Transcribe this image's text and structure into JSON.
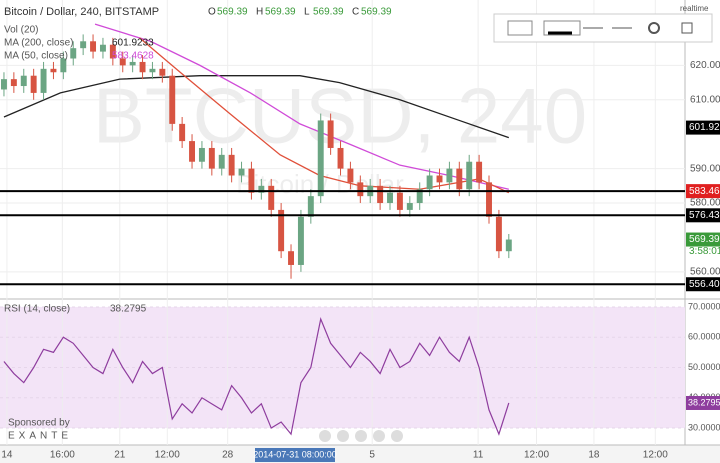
{
  "ui": {
    "ohlc": [
      {
        "label": "O",
        "value": "569.39"
      },
      {
        "label": "H",
        "value": "569.39"
      },
      {
        "label": "L",
        "value": "569.39"
      },
      {
        "label": "C",
        "value": "569.39"
      }
    ],
    "volume_label": "Vol (20)",
    "watermark": "BTCUSD, 240",
    "watermark_sub": "Bitcoin / Dollar",
    "countdown": "3:58:01",
    "crosshair_time": "2014-07-31 08:00:00",
    "sponsor": "Sponsored by",
    "sponsor_name": "EXANTE",
    "mode": "realtime"
  },
  "chart_data": {
    "type": "candlestick",
    "title": "Bitcoin / Dollar, 240, BITSTAMP",
    "up_color": "#6ba583",
    "down_color": "#d75442",
    "open": [
      613,
      616,
      614,
      617,
      612,
      619,
      618,
      622,
      625,
      627,
      624,
      626,
      622,
      620,
      621,
      618,
      619,
      617,
      603,
      598,
      592,
      596,
      590,
      594,
      588,
      590,
      583,
      585,
      578,
      566,
      562,
      576,
      582,
      604,
      596,
      590,
      586,
      582,
      585,
      580,
      583,
      578,
      580,
      584,
      588,
      586,
      590,
      584,
      592,
      586,
      576,
      566
    ],
    "high": [
      618,
      618,
      619,
      619,
      621,
      621,
      624,
      627,
      629,
      629,
      628,
      628,
      624,
      623,
      623,
      621,
      621,
      619,
      605,
      600,
      598,
      598,
      596,
      596,
      592,
      592,
      587,
      587,
      580,
      568,
      578,
      584,
      606,
      606,
      598,
      592,
      588,
      587,
      587,
      585,
      585,
      582,
      586,
      590,
      590,
      592,
      592,
      594,
      594,
      588,
      578,
      571
    ],
    "low": [
      611,
      612,
      612,
      610,
      610,
      616,
      616,
      620,
      623,
      622,
      622,
      620,
      618,
      618,
      616,
      616,
      615,
      601,
      596,
      590,
      590,
      588,
      588,
      586,
      586,
      581,
      581,
      576,
      564,
      558,
      560,
      574,
      580,
      594,
      588,
      584,
      580,
      580,
      578,
      578,
      576,
      576,
      578,
      582,
      584,
      584,
      582,
      582,
      584,
      574,
      564,
      564
    ],
    "close": [
      616,
      614,
      617,
      612,
      619,
      618,
      622,
      625,
      627,
      624,
      626,
      622,
      620,
      621,
      618,
      619,
      617,
      603,
      598,
      592,
      596,
      590,
      594,
      588,
      590,
      583,
      585,
      578,
      566,
      562,
      576,
      582,
      604,
      596,
      590,
      586,
      582,
      585,
      580,
      583,
      578,
      580,
      584,
      588,
      586,
      590,
      584,
      592,
      586,
      576,
      566,
      569.39
    ],
    "xlim": [
      -0.4,
      68.8
    ],
    "xticks": [
      {
        "value": 0.3,
        "label": "14"
      },
      {
        "value": 5.9,
        "label": "16:00"
      },
      {
        "value": 11.7,
        "label": "21"
      },
      {
        "value": 16.5,
        "label": "12:00"
      },
      {
        "value": 22.6,
        "label": "28"
      },
      {
        "value": 37.2,
        "label": "5"
      },
      {
        "value": 47.9,
        "label": "11"
      },
      {
        "value": 53.8,
        "label": "12:00"
      },
      {
        "value": 59.6,
        "label": "18"
      },
      {
        "value": 65.8,
        "label": "12:00"
      }
    ],
    "ylim": [
      552.4,
      639.0
    ],
    "yticks": [
      {
        "value": 560,
        "label": "560.00"
      },
      {
        "value": 580,
        "label": "580.00"
      },
      {
        "value": 590,
        "label": "590.00"
      },
      {
        "value": 610,
        "label": "610.00"
      },
      {
        "value": 620,
        "label": "620.00"
      }
    ],
    "moving_averages": [
      {
        "name": "MA (200, close)",
        "legend_value": 601.9233,
        "color": "#222222",
        "x": [
          0,
          5.7,
          11.7,
          19.8,
          29.9,
          33.9,
          40,
          46,
          51
        ],
        "values": [
          605,
          612,
          616,
          617,
          617,
          615,
          610,
          604,
          599
        ]
      },
      {
        "name": "MA (50, close)",
        "legend_value": 583.4628,
        "color": "#d04bd8",
        "x": [
          9.2,
          14.8,
          19.8,
          24.9,
          29.9,
          35,
          40,
          45,
          51
        ],
        "values": [
          632,
          627,
          620,
          612,
          603,
          597,
          591,
          588,
          584
        ]
      },
      {
        "color": "#e0503a",
        "x": [
          13.7,
          17.8,
          22.8,
          27.9,
          31.9,
          36,
          42,
          48,
          51
        ],
        "values": [
          628,
          618,
          606,
          594,
          588,
          585,
          584,
          587,
          583
        ]
      }
    ],
    "price_badges": [
      {
        "value": 601.92,
        "label": "601.92",
        "color": "#000000",
        "line": false
      },
      {
        "value": 583.46,
        "label": "583.46",
        "color": "#e02020",
        "line": true
      },
      {
        "value": 576.43,
        "label": "576.43",
        "color": "#000000",
        "line": true
      },
      {
        "value": 569.39,
        "label": "569.39",
        "color": "#3a9a3a",
        "line": false
      },
      {
        "value": 556.4,
        "label": "556.40",
        "color": "#000000",
        "line": true
      }
    ],
    "rsi": {
      "name": "RSI (14, close)",
      "color": "#8e3d9e",
      "ylim": [
        24.4,
        72.3
      ],
      "yticks": [
        {
          "value": 30,
          "label": "30.0000"
        },
        {
          "value": 40,
          "label": "40.0000"
        },
        {
          "value": 50,
          "label": "50.0000"
        },
        {
          "value": 60,
          "label": "60.0000"
        },
        {
          "value": 70,
          "label": "70.0000"
        }
      ],
      "values": [
        52,
        48,
        45,
        50,
        56,
        55,
        60,
        58,
        54,
        50,
        48,
        56,
        50,
        45,
        52,
        48,
        50,
        33,
        38,
        35,
        40,
        38,
        36,
        44,
        40,
        35,
        38,
        30,
        32,
        28,
        45,
        50,
        66,
        58,
        54,
        50,
        55,
        52,
        48,
        56,
        50,
        52,
        58,
        54,
        60,
        55,
        52,
        60,
        50,
        36,
        28,
        38.2795
      ]
    }
  }
}
